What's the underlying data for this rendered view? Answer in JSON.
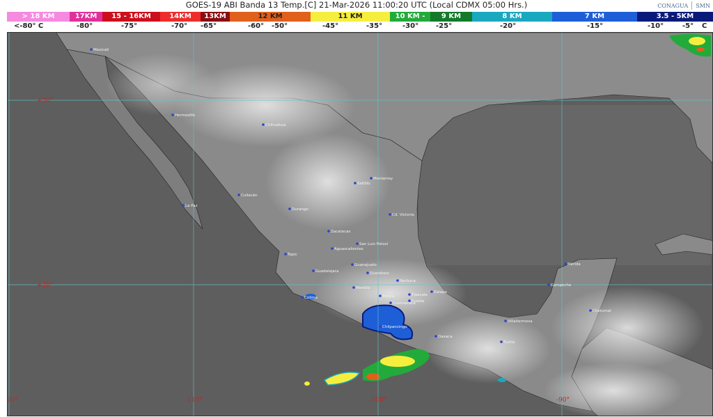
{
  "header": {
    "title": "GOES-19 ABI Banda 13 Temp.[C] 21-Mar-2026 11:00:20 UTC (Local CDMX  05:00 Hrs.)",
    "logos": [
      "CONAGUA",
      "SMN"
    ]
  },
  "legend": {
    "segments": [
      {
        "label": "> 18 KM",
        "color": "#f58ae0"
      },
      {
        "label": "17KM",
        "color": "#e0309a"
      },
      {
        "label": "15 - 16KM",
        "color": "#cc0f1c"
      },
      {
        "label": "14KM",
        "color": "#ee2c2c"
      },
      {
        "label": "13KM",
        "color": "#8a0d12"
      },
      {
        "label": "12 KM",
        "color": "#e0601c"
      },
      {
        "label": "11 KM",
        "color": "#f6ee3e"
      },
      {
        "label": "10 KM -",
        "color": "#22ab3a"
      },
      {
        "label": "9 KM",
        "color": "#137a2a"
      },
      {
        "label": "8 KM",
        "color": "#1aa8c0"
      },
      {
        "label": "7 KM",
        "color": "#1e5fd8"
      },
      {
        "label": "3.5 - 5KM",
        "color": "#0a1a7a"
      }
    ],
    "temperatures": [
      "<-80° C",
      "-80°",
      "-75°",
      "-70°",
      "-65°",
      "-60°",
      "-50°",
      "-45°",
      "-35°",
      "-30°",
      "-25°",
      "-20°",
      "-15°",
      "-10°",
      "-5°",
      "C"
    ]
  },
  "map": {
    "latitude_labels": [
      "+30°",
      "+20°"
    ],
    "longitude_labels": [
      "-120°",
      "-110°",
      "-100°",
      "-90°"
    ],
    "cities": [
      "Mexicali",
      "Hermosillo",
      "Chihuahua",
      "La Paz",
      "Culiacán",
      "Durango",
      "Saltillo",
      "Monterrey",
      "Cd. Victoria",
      "Zacatecas",
      "San Luis Potosí",
      "Aguascalientes",
      "Tepic",
      "Guadalajara",
      "Guanajuato",
      "Querétaro",
      "Morelia",
      "Pachuca",
      "Toluca",
      "Tlaxcala",
      "Puebla",
      "Cuernavaca",
      "Colima",
      "Chilpancingo",
      "Xalapa",
      "Oaxaca",
      "Villahermosa",
      "Tuxtla",
      "Campeche",
      "Mérida",
      "Chetumal"
    ]
  }
}
